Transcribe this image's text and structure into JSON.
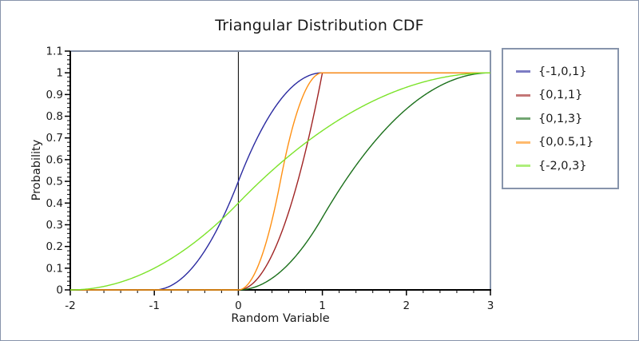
{
  "title": "Triangular Distribution CDF",
  "axes": {
    "xlabel": "Random Variable",
    "ylabel": "Probability",
    "x_ticks": [
      -2,
      -1,
      0,
      1,
      2,
      3
    ],
    "y_ticks": [
      0,
      0.1,
      0.2,
      0.3,
      0.4,
      0.5,
      0.6,
      0.7,
      0.8,
      0.9,
      1,
      1.1
    ],
    "x_minor_step": 0.2,
    "y_minor_step": 0.02,
    "zero_axis_line_x": 0
  },
  "chart_data": {
    "type": "line",
    "title": "Triangular Distribution CDF",
    "xlabel": "Random Variable",
    "ylabel": "Probability",
    "xlim": [
      -2,
      3
    ],
    "ylim": [
      0,
      1.1
    ],
    "grid": false,
    "legend_position": "right",
    "curve_formula": "triangular_cdf",
    "series": [
      {
        "name": "{-1,0,1}",
        "min": -1,
        "mode": 0,
        "max": 1,
        "color": "#2b2ba0"
      },
      {
        "name": "{0,1,1}",
        "min": 0,
        "mode": 1,
        "max": 1,
        "color": "#a02424"
      },
      {
        "name": "{0,1,3}",
        "min": 0,
        "mode": 1,
        "max": 3,
        "color": "#1b701b"
      },
      {
        "name": "{0,0.5,1}",
        "min": 0,
        "mode": 0.5,
        "max": 1,
        "color": "#ff9013"
      },
      {
        "name": "{-2,0,3}",
        "min": -2,
        "mode": 0,
        "max": 3,
        "color": "#7ce32a"
      }
    ]
  },
  "colors": {
    "frame": "#8794ab",
    "axis": "#000000",
    "text": "#1a1a1a",
    "background": "#ffffff"
  }
}
